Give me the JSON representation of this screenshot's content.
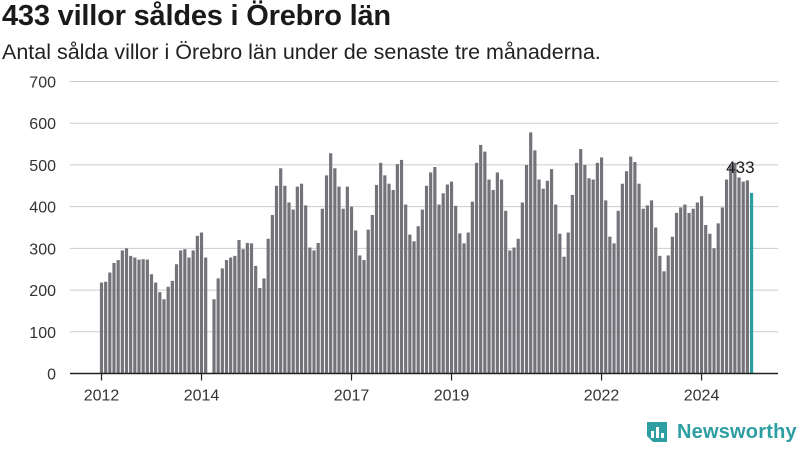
{
  "title": "433 villor såldes i Örebro län",
  "subtitle": "Antal sålda villor i Örebro län under de senaste tre månaderna.",
  "brand": {
    "name": "Newsworthy",
    "icon": "newsworthy-logo-icon"
  },
  "colors": {
    "bar": "#75737a",
    "highlight": "#2a9d9f",
    "grid": "#cccccc",
    "axis": "#222222",
    "brand": "#2e9ea2"
  },
  "chart_data": {
    "type": "bar",
    "x_unit": "month",
    "start": "2012-01",
    "ylim": [
      0,
      700
    ],
    "yticks": [
      0,
      100,
      200,
      300,
      400,
      500,
      600,
      700
    ],
    "xtick_labels": [
      "2012",
      "2014",
      "2017",
      "2019",
      "2022",
      "2024"
    ],
    "xtick_dates": [
      "2012-01",
      "2014-01",
      "2017-01",
      "2019-01",
      "2022-01",
      "2024-01"
    ],
    "grid": true,
    "last_value_label": "433",
    "values": [
      218,
      220,
      242,
      265,
      272,
      295,
      300,
      282,
      278,
      273,
      274,
      273,
      238,
      218,
      195,
      178,
      208,
      222,
      262,
      295,
      298,
      278,
      295,
      330,
      338,
      278,
      0,
      178,
      228,
      252,
      272,
      278,
      282,
      320,
      298,
      313,
      312,
      258,
      205,
      228,
      323,
      380,
      450,
      492,
      450,
      410,
      393,
      448,
      455,
      403,
      302,
      295,
      313,
      395,
      475,
      528,
      492,
      448,
      395,
      448,
      400,
      343,
      283,
      272,
      345,
      380,
      452,
      505,
      475,
      455,
      440,
      502,
      512,
      405,
      333,
      317,
      353,
      393,
      450,
      482,
      495,
      405,
      432,
      453,
      460,
      402,
      336,
      312,
      338,
      412,
      505,
      548,
      532,
      465,
      440,
      482,
      465,
      390,
      295,
      302,
      323,
      410,
      500,
      578,
      535,
      465,
      443,
      462,
      490,
      405,
      335,
      280,
      338,
      428,
      505,
      538,
      500,
      468,
      465,
      505,
      518,
      415,
      328,
      312,
      390,
      455,
      485,
      520,
      507,
      455,
      395,
      403,
      415,
      350,
      282,
      245,
      283,
      328,
      385,
      398,
      405,
      385,
      395,
      410,
      425,
      356,
      335,
      300,
      360,
      398,
      465,
      500,
      505,
      470,
      460,
      463,
      433
    ]
  }
}
